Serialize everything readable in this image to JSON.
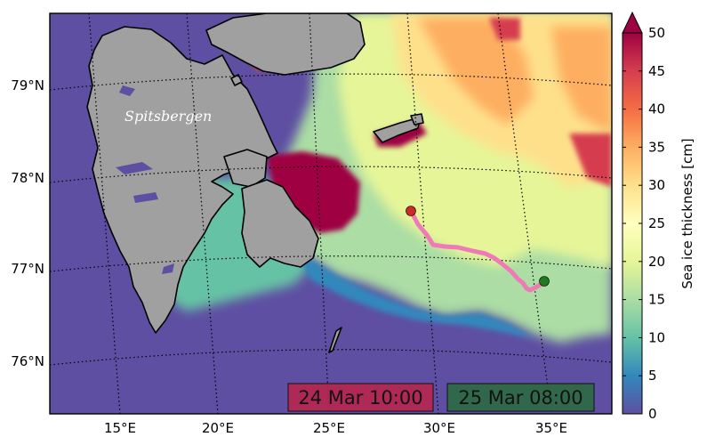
{
  "map": {
    "place_label": "Spitsbergen",
    "lat_labels": [
      "79°N",
      "78°N",
      "77°N",
      "76°N"
    ],
    "lon_labels": [
      "15°E",
      "20°E",
      "25°E",
      "30°E",
      "35°E"
    ],
    "timestamps": {
      "start": "24 Mar 10:00",
      "end": "25 Mar 08:00"
    },
    "colors": {
      "ocean": "#5e4fa2",
      "land": "#a0a0a0",
      "track": "#f07ab8",
      "start_marker": "#cc2a2a",
      "end_marker": "#1f7a1f",
      "start_box": "#b8254e",
      "end_box": "#2e6a44"
    }
  },
  "colorbar": {
    "label": "Sea ice thickness [cm]",
    "ticks": [
      "0",
      "5",
      "10",
      "15",
      "20",
      "25",
      "30",
      "35",
      "40",
      "45",
      "50"
    ],
    "min": 0,
    "max": 50,
    "extend": "max",
    "colors": [
      "#5e4fa2",
      "#3288bd",
      "#66c2a5",
      "#abdda4",
      "#e6f598",
      "#ffffbf",
      "#fee08b",
      "#fdae61",
      "#f46d43",
      "#d53e4f",
      "#9e0142"
    ]
  }
}
